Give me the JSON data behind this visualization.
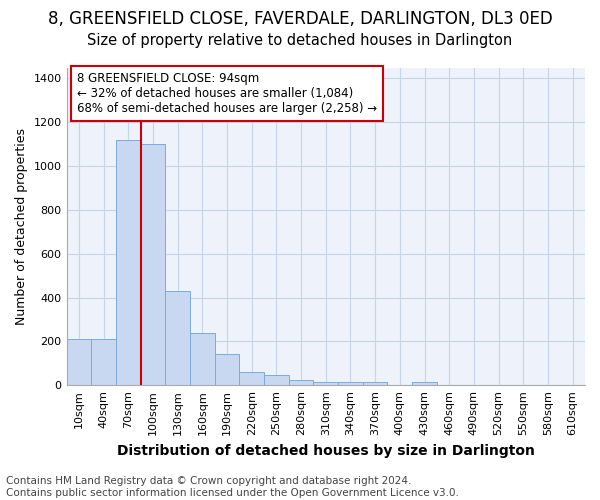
{
  "title": "8, GREENSFIELD CLOSE, FAVERDALE, DARLINGTON, DL3 0ED",
  "subtitle": "Size of property relative to detached houses in Darlington",
  "xlabel": "Distribution of detached houses by size in Darlington",
  "ylabel": "Number of detached properties",
  "categories": [
    "10sqm",
    "40sqm",
    "70sqm",
    "100sqm",
    "130sqm",
    "160sqm",
    "190sqm",
    "220sqm",
    "250sqm",
    "280sqm",
    "310sqm",
    "340sqm",
    "370sqm",
    "400sqm",
    "430sqm",
    "460sqm",
    "490sqm",
    "520sqm",
    "550sqm",
    "580sqm",
    "610sqm"
  ],
  "values": [
    210,
    210,
    1120,
    1100,
    430,
    240,
    145,
    60,
    45,
    25,
    15,
    15,
    15,
    0,
    15,
    0,
    0,
    0,
    0,
    0,
    0
  ],
  "bar_color": "#c8d8f0",
  "bar_edge_color": "#7aabdb",
  "grid_color": "#c8d4e8",
  "background_color": "#ffffff",
  "plot_bg_color": "#edf2fb",
  "ylim": [
    0,
    1450
  ],
  "red_line_x": 3,
  "annotation_text": "8 GREENSFIELD CLOSE: 94sqm\n← 32% of detached houses are smaller (1,084)\n68% of semi-detached houses are larger (2,258) →",
  "annotation_box_color": "#ffffff",
  "annotation_box_edge_color": "#cc0000",
  "red_line_color": "#cc0000",
  "footer_line1": "Contains HM Land Registry data © Crown copyright and database right 2024.",
  "footer_line2": "Contains public sector information licensed under the Open Government Licence v3.0.",
  "title_fontsize": 12,
  "subtitle_fontsize": 10.5,
  "xlabel_fontsize": 10,
  "ylabel_fontsize": 9,
  "tick_fontsize": 8,
  "annotation_fontsize": 8.5,
  "footer_fontsize": 7.5
}
